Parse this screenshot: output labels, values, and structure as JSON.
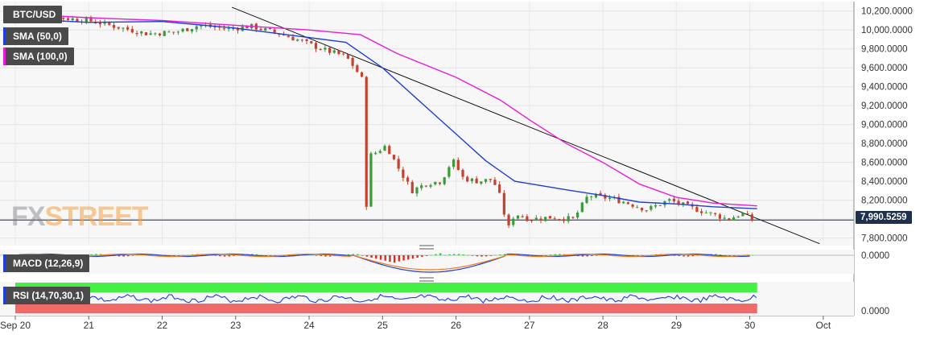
{
  "symbol": "BTC/USD",
  "last_price": "7,990.5259",
  "watermark": {
    "a": "FX",
    "b": "STREET"
  },
  "indicators": {
    "sma50": {
      "label": "SMA (50,0)",
      "color": "#1f3fd6"
    },
    "sma100": {
      "label": "SMA (100,0)",
      "color": "#e81bd6"
    },
    "macd": {
      "label": "MACD (12,26,9)",
      "zero": "0.0000"
    },
    "rsi": {
      "label": "RSI (14,70,30,1)",
      "zero": "0.0000"
    }
  },
  "colors": {
    "up": "#3a9a3a",
    "down": "#c8412c",
    "trendline": "#111111",
    "rsi_upper": "#45f045",
    "rsi_lower": "#f06a6a"
  },
  "chart_data": {
    "type": "candlestick",
    "x_ticks": [
      "Sep 20",
      "21",
      "22",
      "23",
      "24",
      "25",
      "26",
      "27",
      "28",
      "29",
      "30",
      "Oct"
    ],
    "y_ticks": [
      "10,200.0000",
      "10,000.0000",
      "9,800.0000",
      "9,600.0000",
      "9,400.0000",
      "9,200.0000",
      "9,000.0000",
      "8,800.0000",
      "8,600.0000",
      "8,400.0000",
      "8,200.0000",
      "8,000.0000",
      "7,800.0000"
    ],
    "ylim": [
      7720,
      10300
    ],
    "xlim": [
      20.0,
      31.1
    ],
    "close_path": [
      [
        20.0,
        10180
      ],
      [
        20.6,
        10130
      ],
      [
        21.0,
        10100
      ],
      [
        21.4,
        10030
      ],
      [
        21.8,
        9960
      ],
      [
        22.2,
        9980
      ],
      [
        22.5,
        10050
      ],
      [
        22.9,
        10010
      ],
      [
        23.2,
        10040
      ],
      [
        23.6,
        9960
      ],
      [
        23.9,
        9880
      ],
      [
        24.2,
        9790
      ],
      [
        24.5,
        9720
      ],
      [
        24.62,
        9600
      ],
      [
        24.72,
        9480
      ],
      [
        24.78,
        8650
      ],
      [
        24.9,
        8700
      ],
      [
        25.05,
        8780
      ],
      [
        25.2,
        8560
      ],
      [
        25.4,
        8300
      ],
      [
        25.6,
        8380
      ],
      [
        25.8,
        8400
      ],
      [
        25.95,
        8630
      ],
      [
        26.1,
        8430
      ],
      [
        26.3,
        8400
      ],
      [
        26.5,
        8420
      ],
      [
        26.62,
        8200
      ],
      [
        26.7,
        7880
      ],
      [
        26.8,
        8060
      ],
      [
        27.0,
        8000
      ],
      [
        27.3,
        8020
      ],
      [
        27.6,
        8000
      ],
      [
        27.8,
        8250
      ],
      [
        28.1,
        8220
      ],
      [
        28.3,
        8180
      ],
      [
        28.6,
        8100
      ],
      [
        28.9,
        8200
      ],
      [
        29.2,
        8120
      ],
      [
        29.5,
        8050
      ],
      [
        29.7,
        8000
      ],
      [
        29.9,
        8060
      ],
      [
        30.05,
        7990
      ]
    ],
    "sma50": [
      [
        20.0,
        10120
      ],
      [
        21.0,
        10080
      ],
      [
        22.0,
        10090
      ],
      [
        23.0,
        10020
      ],
      [
        23.8,
        9940
      ],
      [
        24.5,
        9870
      ],
      [
        25.0,
        9600
      ],
      [
        25.5,
        9250
      ],
      [
        26.0,
        8900
      ],
      [
        26.4,
        8620
      ],
      [
        26.8,
        8400
      ],
      [
        27.5,
        8310
      ],
      [
        28.0,
        8250
      ],
      [
        28.5,
        8180
      ],
      [
        29.0,
        8160
      ],
      [
        29.5,
        8130
      ],
      [
        30.1,
        8110
      ]
    ],
    "sma100": [
      [
        20.0,
        10170
      ],
      [
        21.0,
        10130
      ],
      [
        22.0,
        10100
      ],
      [
        23.0,
        10050
      ],
      [
        24.0,
        10000
      ],
      [
        24.7,
        9950
      ],
      [
        25.2,
        9750
      ],
      [
        26.0,
        9500
      ],
      [
        26.6,
        9260
      ],
      [
        27.0,
        9050
      ],
      [
        27.5,
        8800
      ],
      [
        28.0,
        8600
      ],
      [
        28.5,
        8370
      ],
      [
        29.0,
        8230
      ],
      [
        29.5,
        8170
      ],
      [
        30.1,
        8140
      ]
    ],
    "trendline": [
      [
        22.95,
        10240
      ],
      [
        30.95,
        7740
      ]
    ],
    "last_value": 7990.5259
  }
}
